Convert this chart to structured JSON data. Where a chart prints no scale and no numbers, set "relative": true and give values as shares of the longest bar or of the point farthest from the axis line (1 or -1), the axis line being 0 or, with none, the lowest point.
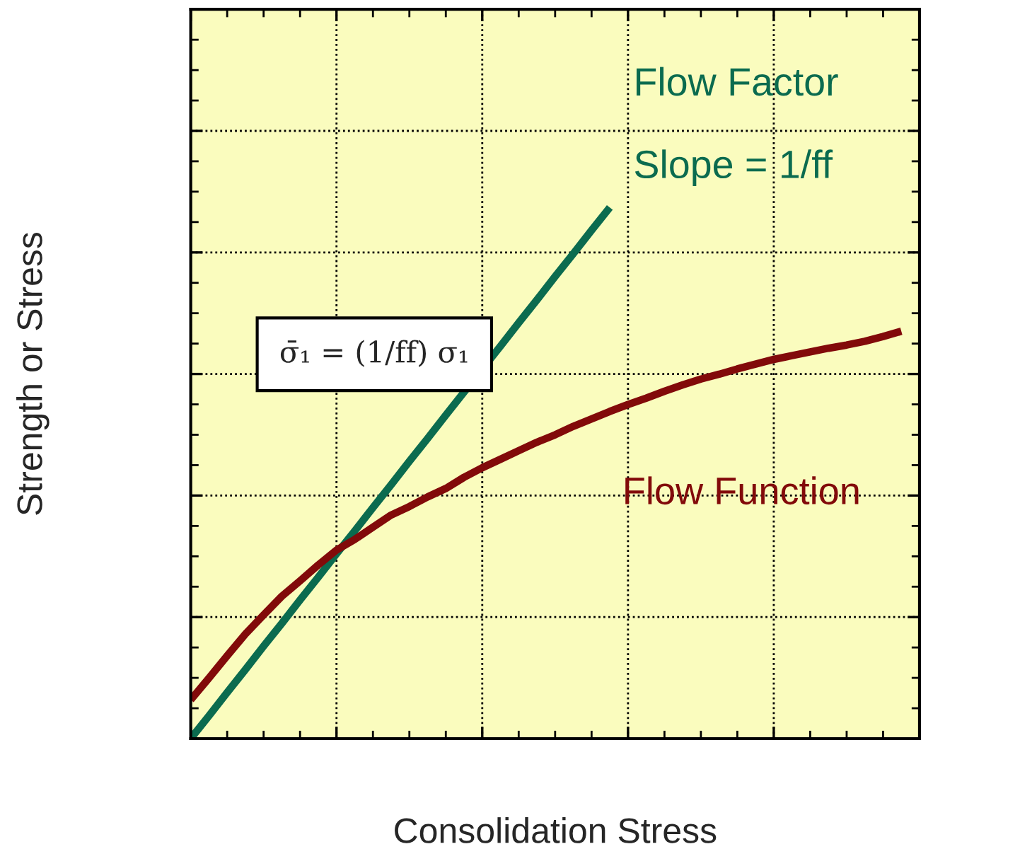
{
  "chart_data": {
    "type": "line",
    "relative": true,
    "xlabel": "Consolidation Stress",
    "ylabel": "Strength or Stress",
    "grid": true,
    "tick_labels": false,
    "categories": [
      null,
      null,
      null,
      null,
      null,
      null,
      null,
      null,
      null,
      null,
      null,
      null,
      null,
      null,
      null,
      null,
      null,
      null,
      null,
      null,
      null,
      null,
      null,
      null,
      null,
      null,
      null,
      null,
      null,
      null,
      null,
      null,
      null,
      null,
      null,
      null,
      null,
      null,
      null,
      null,
      null
    ],
    "series": [
      {
        "name": "Flow Factor",
        "color": "#0b6b4f",
        "values": [
          0,
          0.043,
          0.087,
          0.13,
          0.174,
          0.217,
          0.261,
          0.304,
          0.348,
          0.391,
          0.435,
          0.478,
          0.522,
          0.565,
          0.609,
          null,
          null,
          0.739,
          0.783,
          0.826,
          0.87,
          0.913,
          0.957,
          1,
          null,
          null,
          null,
          null,
          null,
          null,
          null,
          null,
          null,
          null,
          null,
          null,
          null,
          null,
          null,
          null,
          null
        ]
      },
      {
        "name": "Flow Function",
        "color": "#820a0a",
        "values": [
          0.073,
          0.114,
          0.156,
          0.197,
          0.233,
          0.268,
          0.297,
          0.327,
          0.355,
          0.375,
          0.398,
          0.421,
          0.437,
          0.455,
          0.471,
          0.492,
          0.51,
          0.526,
          0.542,
          0.558,
          0.572,
          0.588,
          0.602,
          0.616,
          0.629,
          0.641,
          0.654,
          0.666,
          0.677,
          0.686,
          0.696,
          0.705,
          0.714,
          0.721,
          0.728,
          0.735,
          0.741,
          0.748,
          0.757,
          0.767,
          null
        ]
      }
    ],
    "annotations": [
      "Slope = 1/ff",
      "σ̄₁ = (1/ff) σ₁"
    ]
  }
}
